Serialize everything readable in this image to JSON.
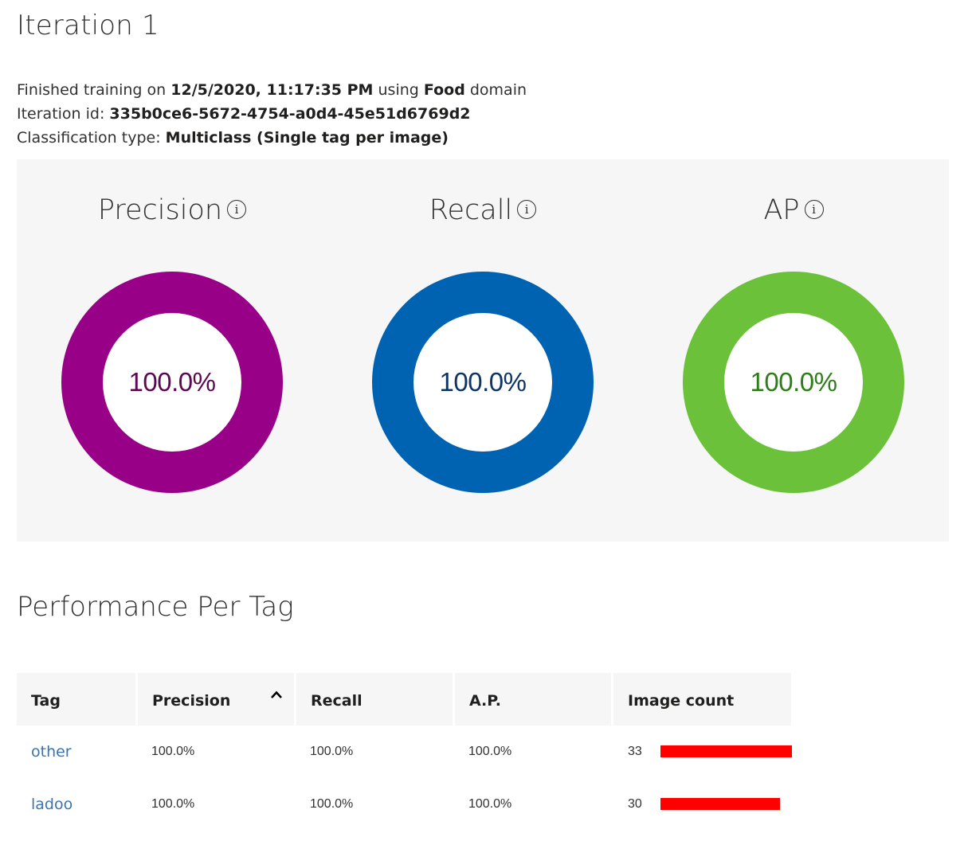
{
  "title": "Iteration 1",
  "info": {
    "finished_prefix": "Finished training on",
    "finished_date": "12/5/2020, 11:17:35 PM",
    "using_text": "using",
    "domain": "Food",
    "domain_suffix": "domain",
    "iteration_label": "Iteration id:",
    "iteration_id": "335b0ce6-5672-4754-a0d4-45e51d6769d2",
    "classification_label": "Classification type:",
    "classification_type": "Multiclass (Single tag per image)"
  },
  "metrics": [
    {
      "name": "Precision",
      "value": "100.0%",
      "fraction": 1.0,
      "ring_color": "#990088",
      "text_color": "#5c0852"
    },
    {
      "name": "Recall",
      "value": "100.0%",
      "fraction": 1.0,
      "ring_color": "#0063b1",
      "text_color": "#0d3566"
    },
    {
      "name": "AP",
      "value": "100.0%",
      "fraction": 1.0,
      "ring_color": "#6bc23a",
      "text_color": "#2e7d18"
    }
  ],
  "info_icon_glyph": "i",
  "icons": {
    "info": "info-icon",
    "sort": "chevron-up-icon"
  },
  "section_title": "Performance Per Tag",
  "table": {
    "headers": {
      "tag": "Tag",
      "precision": "Precision",
      "recall": "Recall",
      "ap": "A.P.",
      "image_count": "Image count"
    },
    "rows": [
      {
        "tag": "other",
        "precision": "100.0%",
        "recall": "100.0%",
        "ap": "100.0%",
        "image_count": "33",
        "count": 33
      },
      {
        "tag": "ladoo",
        "precision": "100.0%",
        "recall": "100.0%",
        "ap": "100.0%",
        "image_count": "30",
        "count": 30
      }
    ],
    "bar_color": "#ff0000",
    "tag_link_color": "#3b73af"
  }
}
